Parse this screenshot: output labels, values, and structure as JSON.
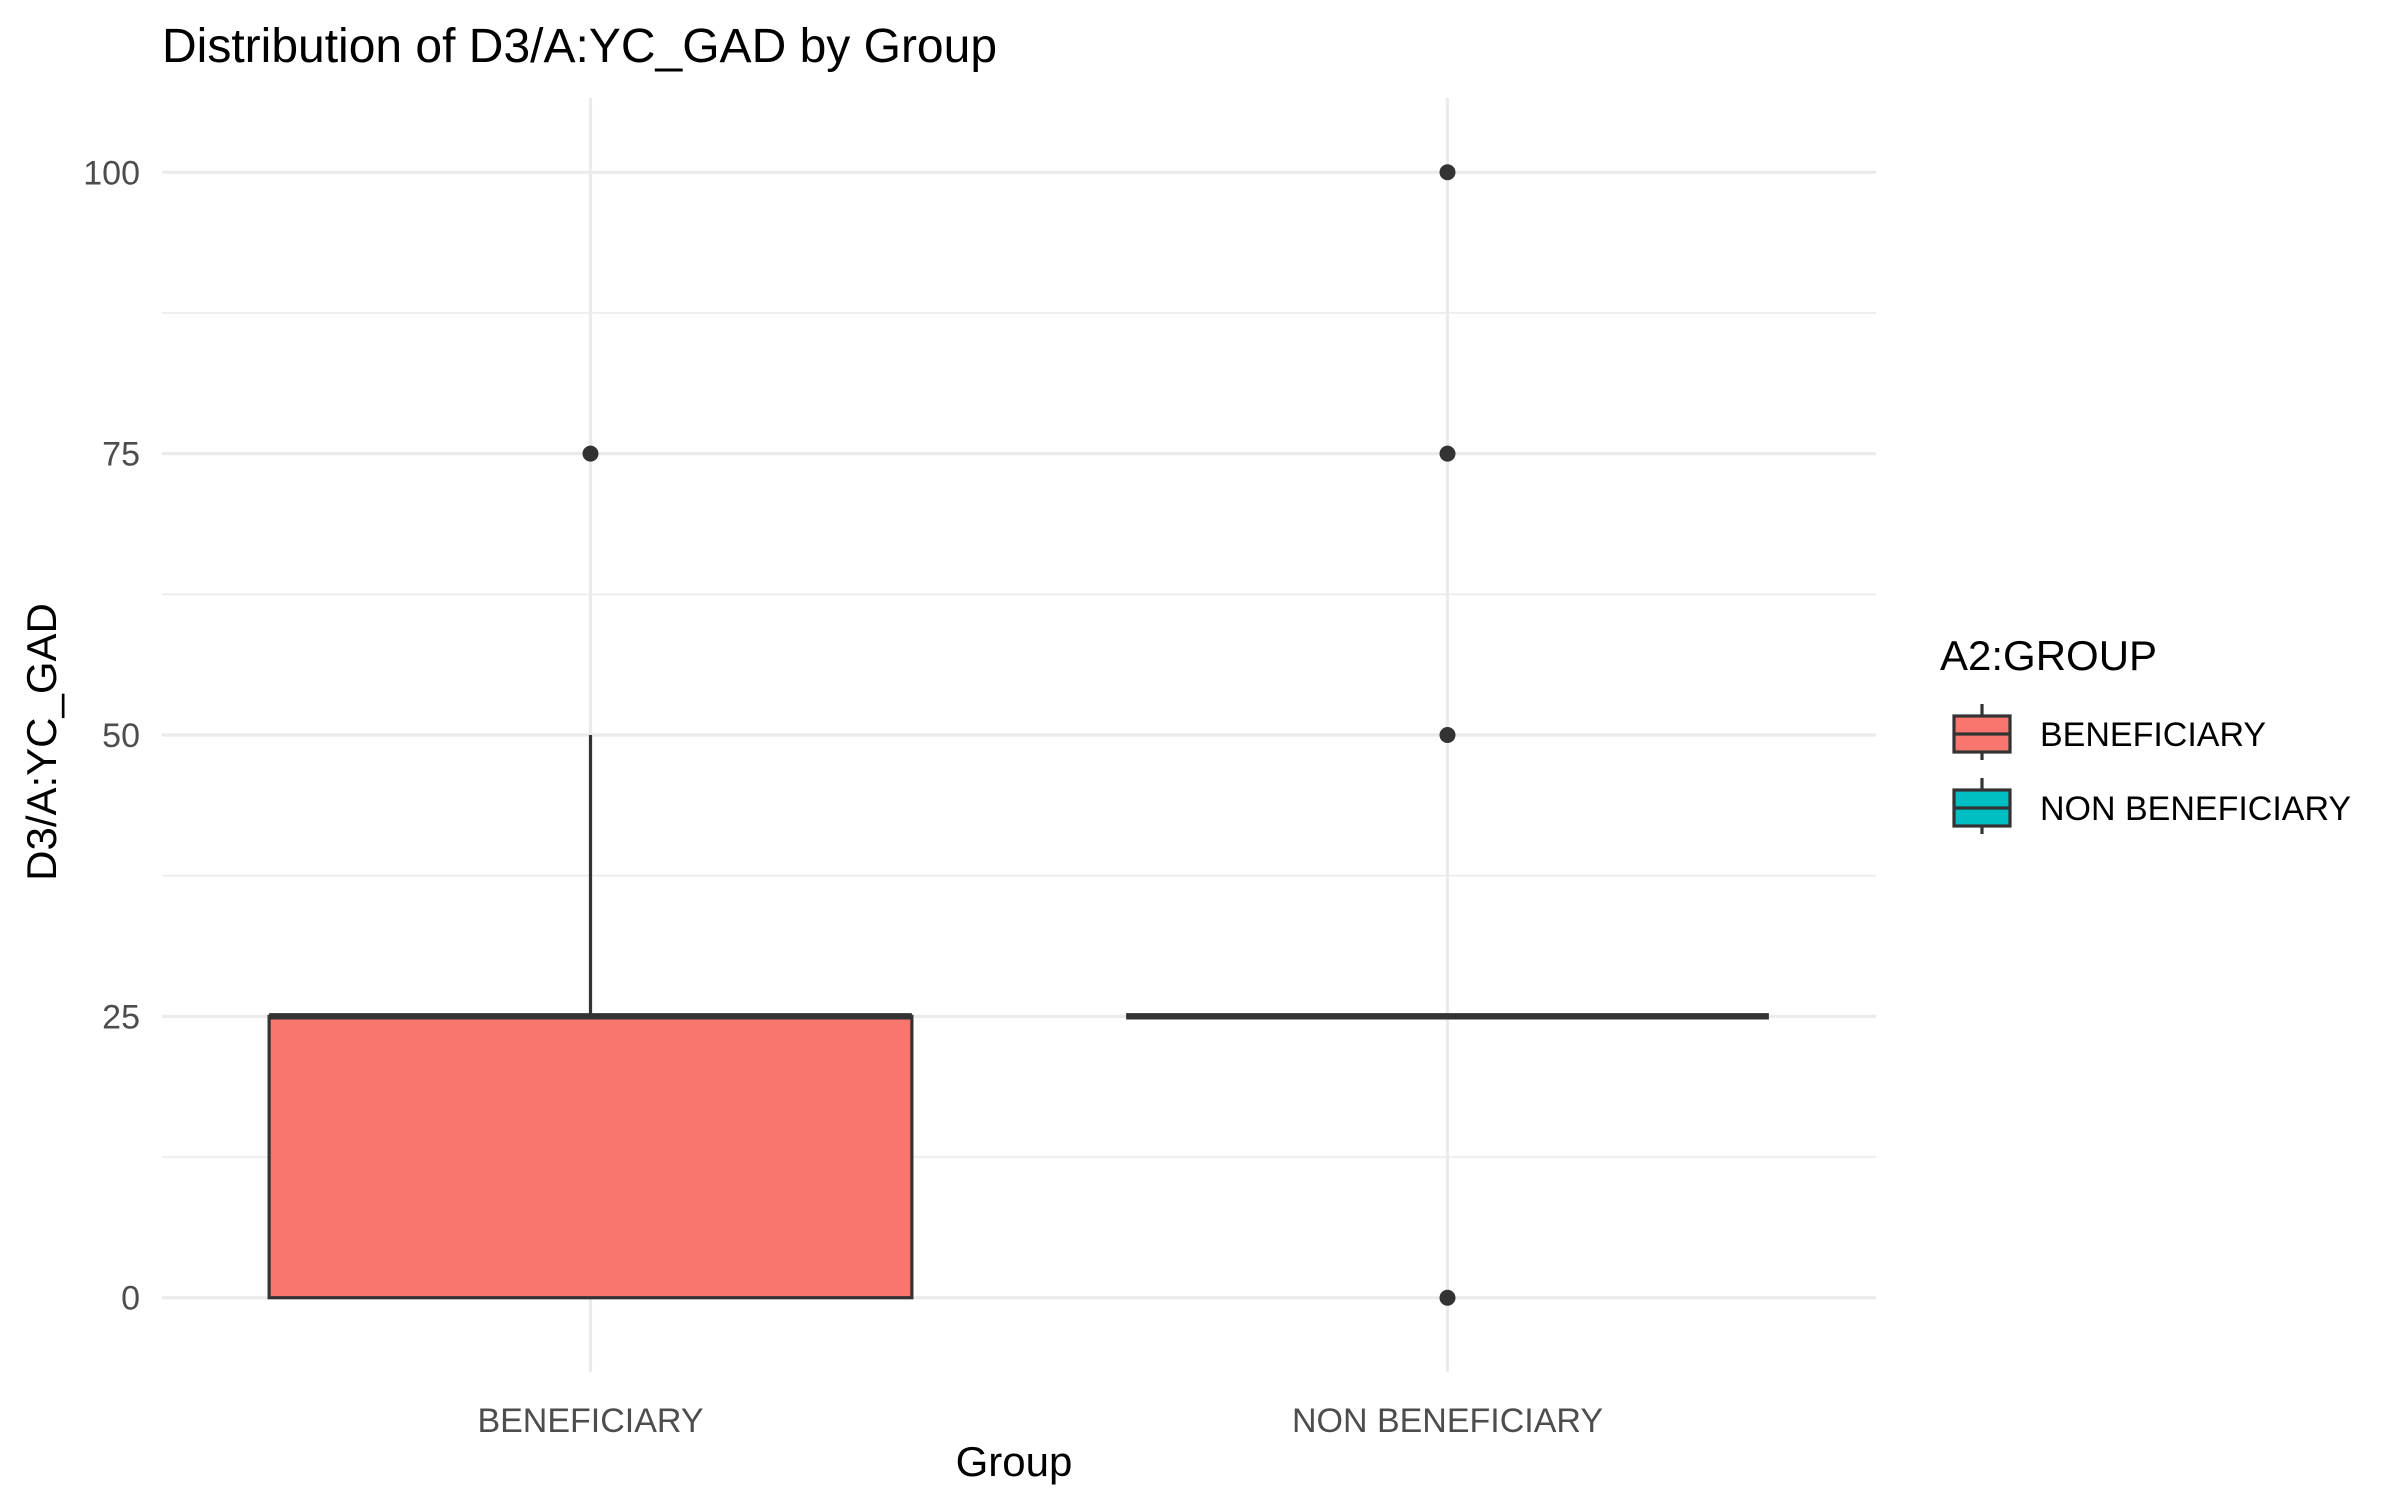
{
  "chart_data": {
    "type": "boxplot",
    "title": "Distribution of D3/A:YC_GAD by Group",
    "xlabel": "Group",
    "ylabel": "D3/A:YC_GAD",
    "ylim": [
      -6.6,
      106.6
    ],
    "yticks": [
      0,
      25,
      50,
      75,
      100
    ],
    "grid": true,
    "categories": [
      "BENEFICIARY",
      "NON BENEFICIARY"
    ],
    "legend": {
      "title": "A2:GROUP",
      "position": "right",
      "items": [
        {
          "label": "BENEFICIARY",
          "color": "#F8766D"
        },
        {
          "label": "NON BENEFICIARY",
          "color": "#00BFC4"
        }
      ]
    },
    "series": [
      {
        "name": "BENEFICIARY",
        "color": "#F8766D",
        "min": 0,
        "q1": 0,
        "median": 25,
        "q3": 25,
        "max": 50,
        "outliers": [
          75
        ]
      },
      {
        "name": "NON BENEFICIARY",
        "color": "#00BFC4",
        "min": 25,
        "q1": 25,
        "median": 25,
        "q3": 25,
        "max": 25,
        "outliers": [
          0,
          50,
          75,
          100
        ]
      }
    ]
  }
}
